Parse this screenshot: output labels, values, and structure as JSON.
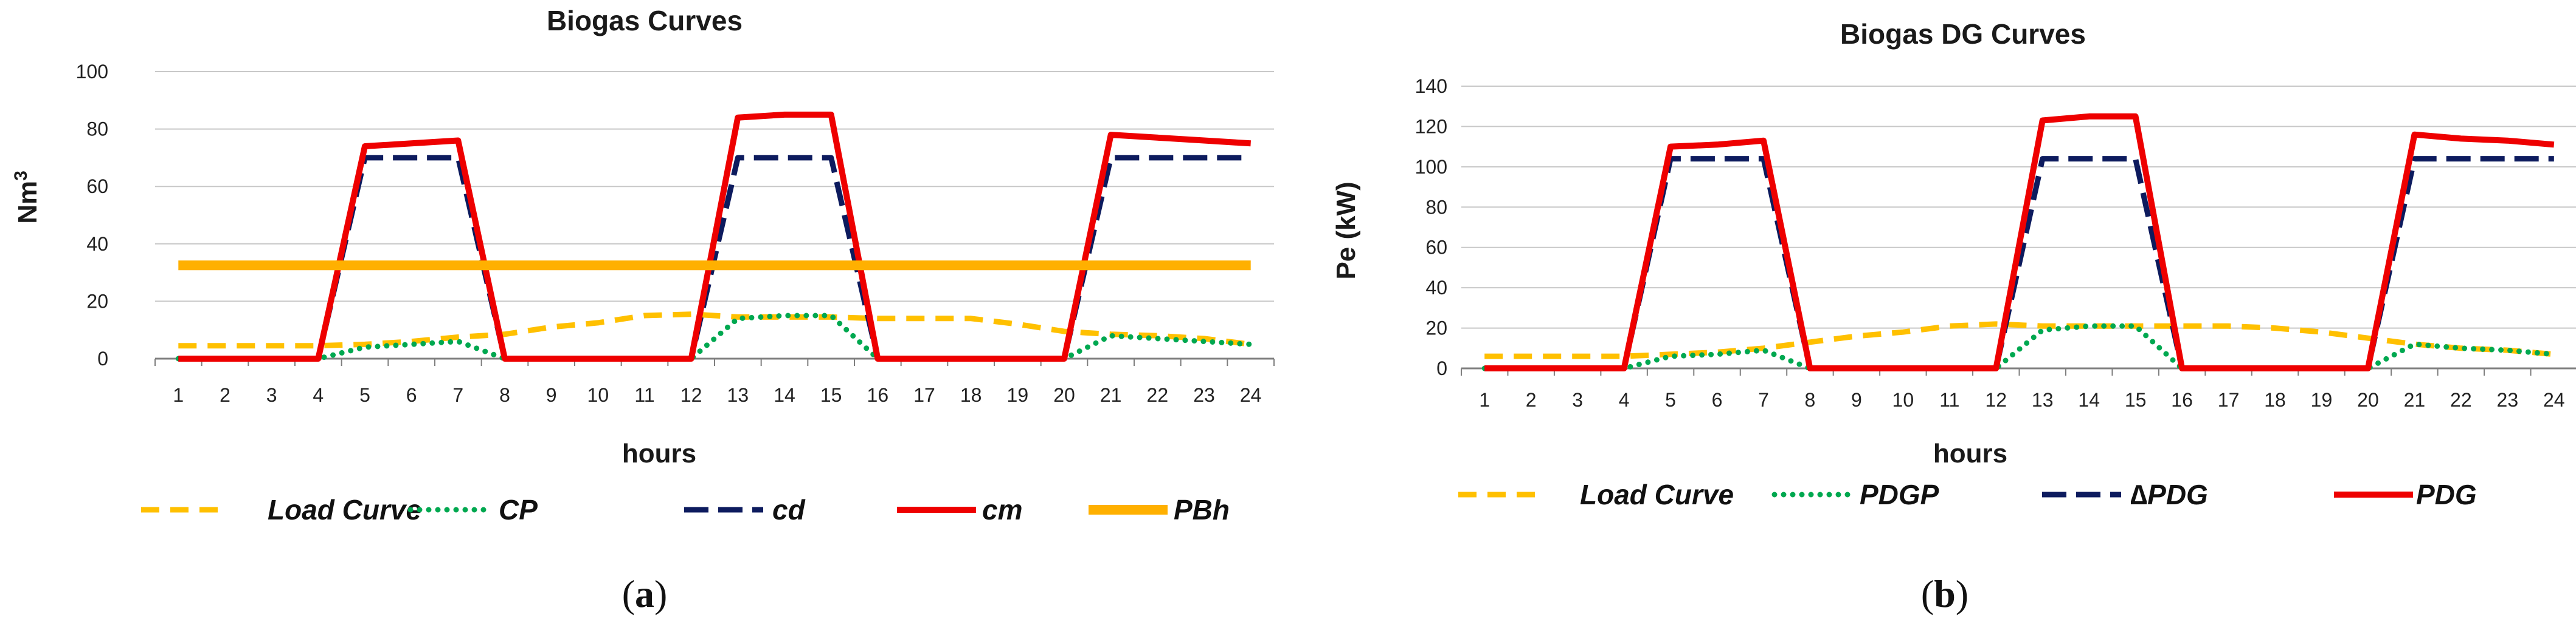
{
  "panels": [
    {
      "label_open": "(",
      "label_letter": "a",
      "label_close": ")",
      "chart_data": {
        "type": "line",
        "title": "Biogas Curves",
        "xlabel": "hours",
        "ylabel": "Nm",
        "ylabel_superscript": "3",
        "x": [
          1,
          2,
          3,
          4,
          5,
          6,
          7,
          8,
          9,
          10,
          11,
          12,
          13,
          14,
          15,
          16,
          17,
          18,
          19,
          20,
          21,
          22,
          23,
          24
        ],
        "ylim": [
          0,
          100
        ],
        "yticks": [
          0,
          20,
          40,
          60,
          80,
          100
        ],
        "grid": true,
        "legend_position": "bottom",
        "series": [
          {
            "name": "Load Curve",
            "color": "#FFC000",
            "dash": "dashed",
            "values": [
              4.5,
              4.5,
              4.5,
              4.5,
              5,
              6,
              7.5,
              8.5,
              11,
              12.5,
              15,
              15.5,
              14.5,
              14.5,
              14.5,
              14,
              14,
              14,
              12,
              9.5,
              8.5,
              8,
              7,
              5
            ]
          },
          {
            "name": "CP",
            "color": "#00A850",
            "dash": "dotted",
            "values": [
              0,
              0,
              0,
              0,
              4,
              5,
              6,
              0,
              0,
              0,
              0,
              0,
              14,
              15,
              15,
              0,
              0,
              0,
              0,
              0,
              8,
              7,
              6,
              5
            ]
          },
          {
            "name": "cd",
            "color": "#0D1B5E",
            "dash": "longdash",
            "values": [
              0,
              0,
              0,
              0,
              70,
              70,
              70,
              0,
              0,
              0,
              0,
              0,
              70,
              70,
              70,
              0,
              0,
              0,
              0,
              0,
              70,
              70,
              70,
              70
            ]
          },
          {
            "name": "cm",
            "color": "#EE0000",
            "dash": "solid",
            "values": [
              0,
              0,
              0,
              0,
              74,
              75,
              76,
              0,
              0,
              0,
              0,
              0,
              84,
              85,
              85,
              0,
              0,
              0,
              0,
              0,
              78,
              77,
              76,
              75
            ]
          },
          {
            "name": "PBh",
            "color": "#FFB000",
            "dash": "solid-thick",
            "values": [
              32.5,
              32.5,
              32.5,
              32.5,
              32.5,
              32.5,
              32.5,
              32.5,
              32.5,
              32.5,
              32.5,
              32.5,
              32.5,
              32.5,
              32.5,
              32.5,
              32.5,
              32.5,
              32.5,
              32.5,
              32.5,
              32.5,
              32.5,
              32.5
            ]
          }
        ]
      }
    },
    {
      "label_open": "(",
      "label_letter": "b",
      "label_close": ")",
      "chart_data": {
        "type": "line",
        "title": "Biogas DG Curves",
        "xlabel": "hours",
        "ylabel": "Pe (kW)",
        "ylabel_superscript": "",
        "x": [
          1,
          2,
          3,
          4,
          5,
          6,
          7,
          8,
          9,
          10,
          11,
          12,
          13,
          14,
          15,
          16,
          17,
          18,
          19,
          20,
          21,
          22,
          23,
          24
        ],
        "ylim": [
          0,
          140
        ],
        "yticks": [
          0,
          20,
          40,
          60,
          80,
          100,
          120,
          140
        ],
        "grid": true,
        "legend_position": "bottom",
        "series": [
          {
            "name": "Load Curve",
            "color": "#FFC000",
            "dash": "dashed",
            "values": [
              6,
              6,
              6,
              6,
              7,
              8,
              10,
              13,
              16,
              18,
              21,
              22,
              21,
              21,
              21,
              21,
              21,
              20,
              18,
              15,
              12,
              10,
              9,
              7
            ]
          },
          {
            "name": "PDGP",
            "color": "#00A850",
            "dash": "dotted",
            "values": [
              0,
              0,
              0,
              0,
              6,
              7,
              9,
              0,
              0,
              0,
              0,
              0,
              19,
              21,
              21,
              0,
              0,
              0,
              0,
              0,
              12,
              10,
              9,
              7
            ]
          },
          {
            "name": "∆PDG",
            "color": "#0D1B5E",
            "dash": "longdash",
            "values": [
              0,
              0,
              0,
              0,
              104,
              104,
              104,
              0,
              0,
              0,
              0,
              0,
              104,
              104,
              104,
              0,
              0,
              0,
              0,
              0,
              104,
              104,
              104,
              104
            ]
          },
          {
            "name": "PDG",
            "color": "#EE0000",
            "dash": "solid",
            "values": [
              0,
              0,
              0,
              0,
              110,
              111,
              113,
              0,
              0,
              0,
              0,
              0,
              123,
              125,
              125,
              0,
              0,
              0,
              0,
              0,
              116,
              114,
              113,
              111
            ]
          }
        ]
      }
    }
  ]
}
